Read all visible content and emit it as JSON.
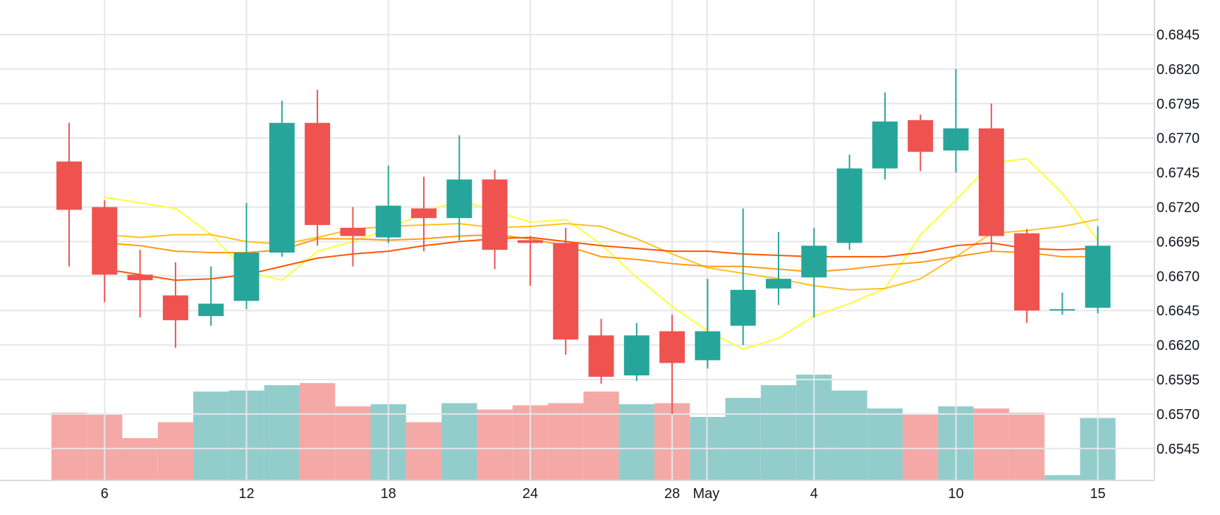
{
  "chart_data": {
    "type": "candlestick",
    "title": "",
    "xlabel": "",
    "ylabel": "",
    "ylim": [
      0.6535,
      0.6858
    ],
    "y_ticks": [
      "0.6845",
      "0.6820",
      "0.6795",
      "0.6770",
      "0.6745",
      "0.6720",
      "0.6695",
      "0.6670",
      "0.6645",
      "0.6620",
      "0.6595",
      "0.6570",
      "0.6545"
    ],
    "x_tick_labels": [
      {
        "label": "6",
        "index": 1
      },
      {
        "label": "12",
        "index": 5
      },
      {
        "label": "18",
        "index": 9
      },
      {
        "label": "24",
        "index": 13
      },
      {
        "label": "28",
        "index": 17
      },
      {
        "label": "May",
        "index": 18
      },
      {
        "label": "4",
        "index": 21
      },
      {
        "label": "10",
        "index": 25
      },
      {
        "label": "15",
        "index": 29
      }
    ],
    "grid": true,
    "colors": {
      "up": "#26a69a",
      "down": "#ef5350",
      "volume_up": "#92cdcb",
      "volume_down": "#f5a9a7",
      "grid": "#e6e6e9",
      "ma": [
        "#ffff33",
        "#ffc21a",
        "#ff9b14",
        "#ff5500"
      ]
    },
    "candles": [
      {
        "o": 0.6753,
        "h": 0.6781,
        "l": 0.6677,
        "c": 0.6718
      },
      {
        "o": 0.672,
        "h": 0.6725,
        "l": 0.6651,
        "c": 0.6671
      },
      {
        "o": 0.6671,
        "h": 0.6689,
        "l": 0.664,
        "c": 0.6667
      },
      {
        "o": 0.6656,
        "h": 0.668,
        "l": 0.6618,
        "c": 0.6638
      },
      {
        "o": 0.6641,
        "h": 0.6677,
        "l": 0.6634,
        "c": 0.665
      },
      {
        "o": 0.6652,
        "h": 0.6723,
        "l": 0.6646,
        "c": 0.6687
      },
      {
        "o": 0.6687,
        "h": 0.6797,
        "l": 0.6684,
        "c": 0.6781
      },
      {
        "o": 0.6781,
        "h": 0.6805,
        "l": 0.6692,
        "c": 0.6707
      },
      {
        "o": 0.6705,
        "h": 0.672,
        "l": 0.6677,
        "c": 0.6699
      },
      {
        "o": 0.6698,
        "h": 0.675,
        "l": 0.6694,
        "c": 0.6721
      },
      {
        "o": 0.6719,
        "h": 0.6742,
        "l": 0.6688,
        "c": 0.6712
      },
      {
        "o": 0.6712,
        "h": 0.6772,
        "l": 0.6696,
        "c": 0.674
      },
      {
        "o": 0.674,
        "h": 0.6747,
        "l": 0.6675,
        "c": 0.6689
      },
      {
        "o": 0.6696,
        "h": 0.6699,
        "l": 0.6663,
        "c": 0.6694
      },
      {
        "o": 0.6694,
        "h": 0.6705,
        "l": 0.6613,
        "c": 0.6624
      },
      {
        "o": 0.6627,
        "h": 0.6639,
        "l": 0.6592,
        "c": 0.6597
      },
      {
        "o": 0.6598,
        "h": 0.6636,
        "l": 0.6594,
        "c": 0.6627
      },
      {
        "o": 0.663,
        "h": 0.6642,
        "l": 0.657,
        "c": 0.6607
      },
      {
        "o": 0.6609,
        "h": 0.6668,
        "l": 0.6603,
        "c": 0.663
      },
      {
        "o": 0.6634,
        "h": 0.6719,
        "l": 0.662,
        "c": 0.666
      },
      {
        "o": 0.6661,
        "h": 0.6702,
        "l": 0.6649,
        "c": 0.6668
      },
      {
        "o": 0.6669,
        "h": 0.6705,
        "l": 0.664,
        "c": 0.6692
      },
      {
        "o": 0.6694,
        "h": 0.6758,
        "l": 0.6689,
        "c": 0.6748
      },
      {
        "o": 0.6748,
        "h": 0.6803,
        "l": 0.674,
        "c": 0.6782
      },
      {
        "o": 0.6783,
        "h": 0.6787,
        "l": 0.6746,
        "c": 0.676
      },
      {
        "o": 0.6761,
        "h": 0.682,
        "l": 0.6745,
        "c": 0.6777
      },
      {
        "o": 0.6777,
        "h": 0.6795,
        "l": 0.6688,
        "c": 0.6699
      },
      {
        "o": 0.6701,
        "h": 0.6704,
        "l": 0.6636,
        "c": 0.6645
      },
      {
        "o": 0.6645,
        "h": 0.6658,
        "l": 0.6642,
        "c": 0.6646
      },
      {
        "o": 0.6647,
        "h": 0.6706,
        "l": 0.6643,
        "c": 0.6692
      }
    ],
    "volume": {
      "range": [
        0,
        100
      ],
      "values": [
        64,
        62,
        40,
        55,
        84,
        85,
        90,
        92,
        70,
        72,
        55,
        73,
        67,
        71,
        73,
        84,
        72,
        73,
        60,
        78,
        90,
        100,
        85,
        68,
        62,
        70,
        68,
        64,
        5,
        59
      ]
    },
    "series": [
      {
        "values": [
          null,
          0.6727,
          0.6723,
          0.6719,
          0.67,
          0.6673,
          0.6667,
          0.6688,
          0.6695,
          0.6704,
          0.6716,
          0.6725,
          0.6717,
          0.6709,
          0.6711,
          0.6693,
          0.6669,
          0.6648,
          0.663,
          0.6617,
          0.6625,
          0.6641,
          0.665,
          0.6661,
          0.67,
          0.6725,
          0.6752,
          0.6755,
          0.673,
          0.6696
        ]
      },
      {
        "values": [
          null,
          0.67,
          0.6698,
          0.67,
          0.67,
          0.6695,
          0.6693,
          0.6698,
          0.6704,
          0.6706,
          0.6707,
          0.6708,
          0.6705,
          0.6706,
          0.6708,
          0.6706,
          0.6697,
          0.6686,
          0.6676,
          0.6672,
          0.6668,
          0.6663,
          0.666,
          0.6661,
          0.6668,
          0.6684,
          0.6701,
          0.6703,
          0.6706,
          0.6711
        ]
      },
      {
        "values": [
          null,
          0.6694,
          0.6692,
          0.6688,
          0.6687,
          0.6687,
          0.6689,
          0.6697,
          0.6697,
          0.6696,
          0.6697,
          0.6699,
          0.67,
          0.6697,
          0.6692,
          0.6684,
          0.6682,
          0.6679,
          0.6677,
          0.6677,
          0.6675,
          0.6673,
          0.6675,
          0.6678,
          0.668,
          0.6684,
          0.6688,
          0.6687,
          0.6684,
          0.6684
        ]
      },
      {
        "values": [
          null,
          0.6675,
          0.6671,
          0.6667,
          0.6668,
          0.6671,
          0.6677,
          0.6683,
          0.6686,
          0.6688,
          0.6692,
          0.6695,
          0.6697,
          0.6698,
          0.6695,
          0.6692,
          0.669,
          0.6688,
          0.6688,
          0.6686,
          0.6685,
          0.6684,
          0.6684,
          0.6684,
          0.6687,
          0.6692,
          0.6694,
          0.669,
          0.6689,
          0.669
        ]
      }
    ]
  }
}
